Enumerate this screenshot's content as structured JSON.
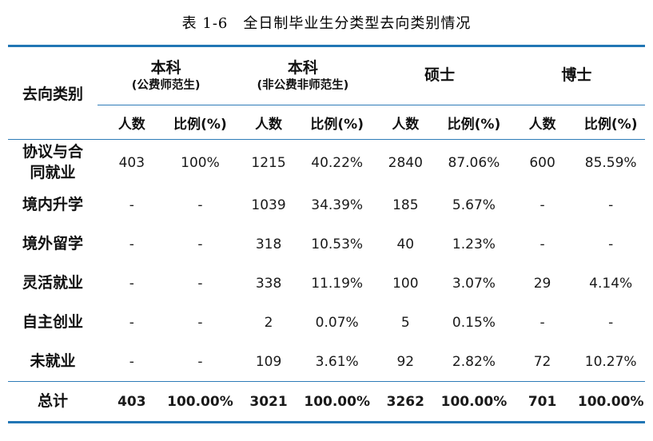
{
  "title": "表 1-6　全日制毕业生分类型去向类别情况",
  "table": {
    "row_header": "去向类别",
    "groups": [
      {
        "line1": "本科",
        "line2": "(公费师范生)"
      },
      {
        "line1": "本科",
        "line2": "(非公费非师范生)"
      },
      {
        "line1": "硕士",
        "line2": ""
      },
      {
        "line1": "博士",
        "line2": ""
      }
    ],
    "subheaders": [
      "人数",
      "比例(%)",
      "人数",
      "比例(%)",
      "人数",
      "比例(%)",
      "人数",
      "比例(%)"
    ],
    "rows": [
      {
        "label": "协议与合\n同就业",
        "cells": [
          "403",
          "100%",
          "1215",
          "40.22%",
          "2840",
          "87.06%",
          "600",
          "85.59%"
        ]
      },
      {
        "label": "境内升学",
        "cells": [
          "-",
          "-",
          "1039",
          "34.39%",
          "185",
          "5.67%",
          "-",
          "-"
        ]
      },
      {
        "label": "境外留学",
        "cells": [
          "-",
          "-",
          "318",
          "10.53%",
          "40",
          "1.23%",
          "-",
          "-"
        ]
      },
      {
        "label": "灵活就业",
        "cells": [
          "-",
          "-",
          "338",
          "11.19%",
          "100",
          "3.07%",
          "29",
          "4.14%"
        ]
      },
      {
        "label": "自主创业",
        "cells": [
          "-",
          "-",
          "2",
          "0.07%",
          "5",
          "0.15%",
          "-",
          "-"
        ]
      },
      {
        "label": "未就业",
        "cells": [
          "-",
          "-",
          "109",
          "3.61%",
          "92",
          "2.82%",
          "72",
          "10.27%"
        ]
      }
    ],
    "total_row": {
      "label": "总计",
      "cells": [
        "403",
        "100.00%",
        "3021",
        "100.00%",
        "3262",
        "100.00%",
        "701",
        "100.00%"
      ]
    }
  },
  "colors": {
    "rule_blue": "#2176b5"
  }
}
